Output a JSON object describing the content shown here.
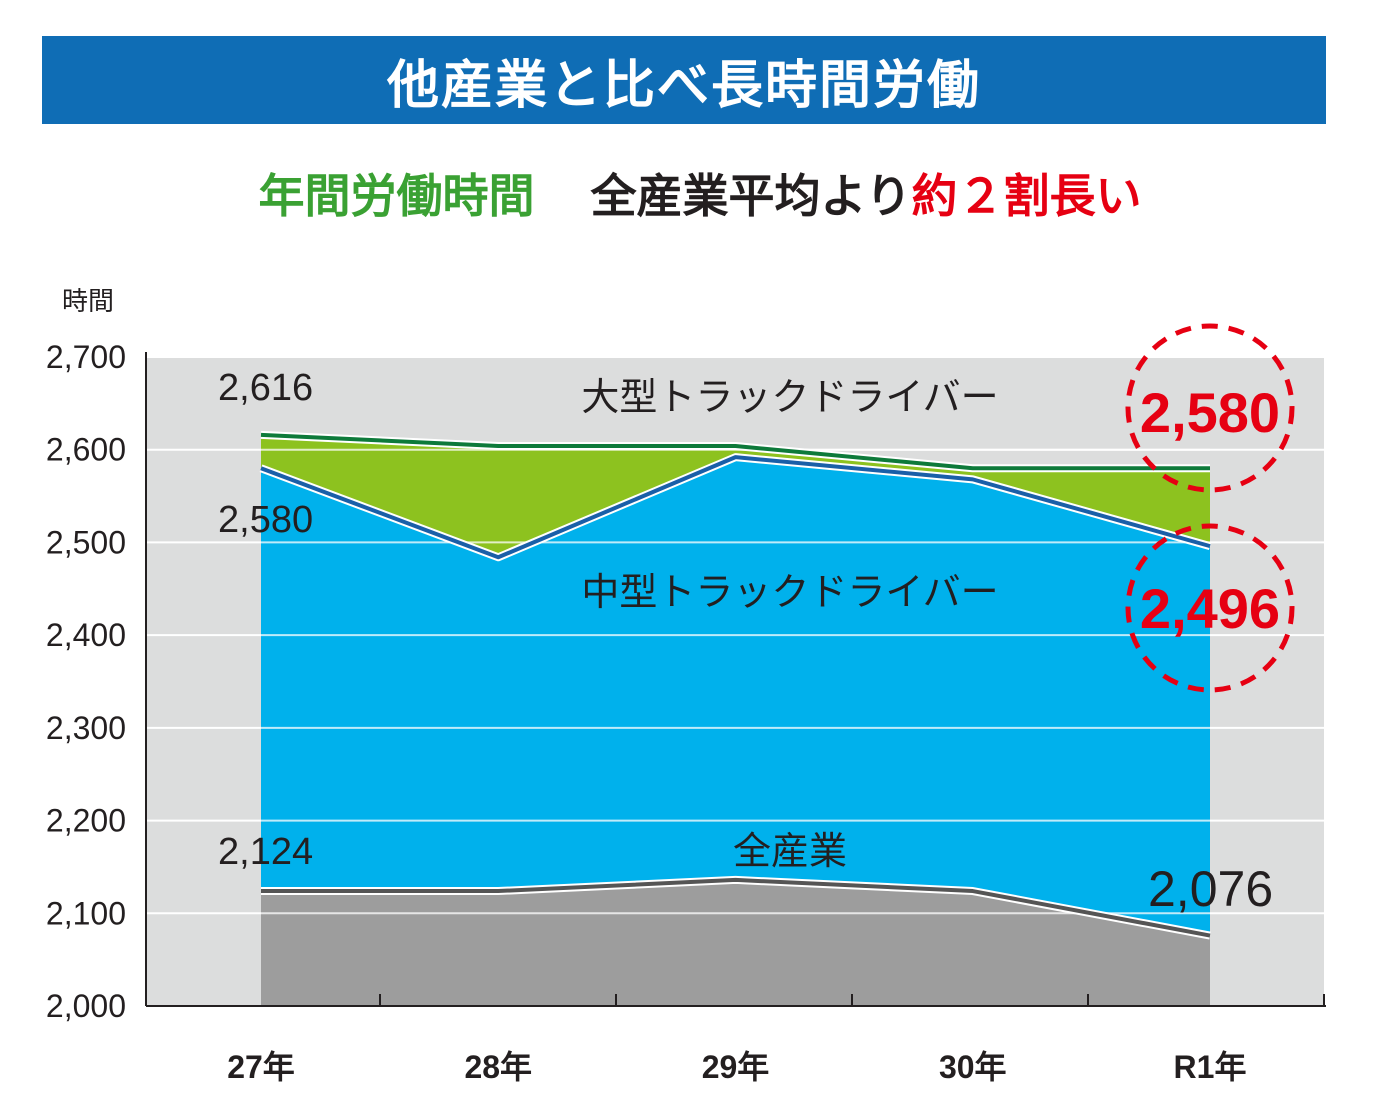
{
  "header": {
    "title": "他産業と比べ長時間労働"
  },
  "subtitle": {
    "green_part": "年間労働時間",
    "black_part": "全産業平均より",
    "red_part": "約２割長い"
  },
  "colors": {
    "banner": "#0f6db5",
    "large_truck_area": "#8dc21f",
    "large_truck_line": "#0d7a3a",
    "medium_truck_area": "#00b1ec",
    "medium_truck_line": "#1a5fa8",
    "all_industry_area": "#9d9d9d",
    "plot_background": "#dcdddd",
    "highlight": "#e60012"
  },
  "chart_data": {
    "type": "area",
    "ylabel": "時間",
    "ylim": [
      2000,
      2700
    ],
    "yticks": [
      2000,
      2100,
      2200,
      2300,
      2400,
      2500,
      2600,
      2700
    ],
    "ytick_labels": [
      "2,000",
      "2,100",
      "2,200",
      "2,300",
      "2,400",
      "2,500",
      "2,600",
      "2,700"
    ],
    "categories": [
      "27年",
      "28年",
      "29年",
      "30年",
      "R1年"
    ],
    "grid": true,
    "series": [
      {
        "name": "大型トラックドライバー",
        "values": [
          2616,
          2604,
          2604,
          2580,
          2580
        ]
      },
      {
        "name": "中型トラックドライバー",
        "values": [
          2580,
          2484,
          2592,
          2568,
          2496
        ]
      },
      {
        "name": "全産業",
        "values": [
          2124,
          2124,
          2136,
          2124,
          2076
        ]
      }
    ],
    "data_labels": {
      "large_first": "2,616",
      "medium_first": "2,580",
      "all_first": "2,124",
      "all_last": "2,076",
      "large_last": "2,580",
      "medium_last": "2,496"
    }
  }
}
